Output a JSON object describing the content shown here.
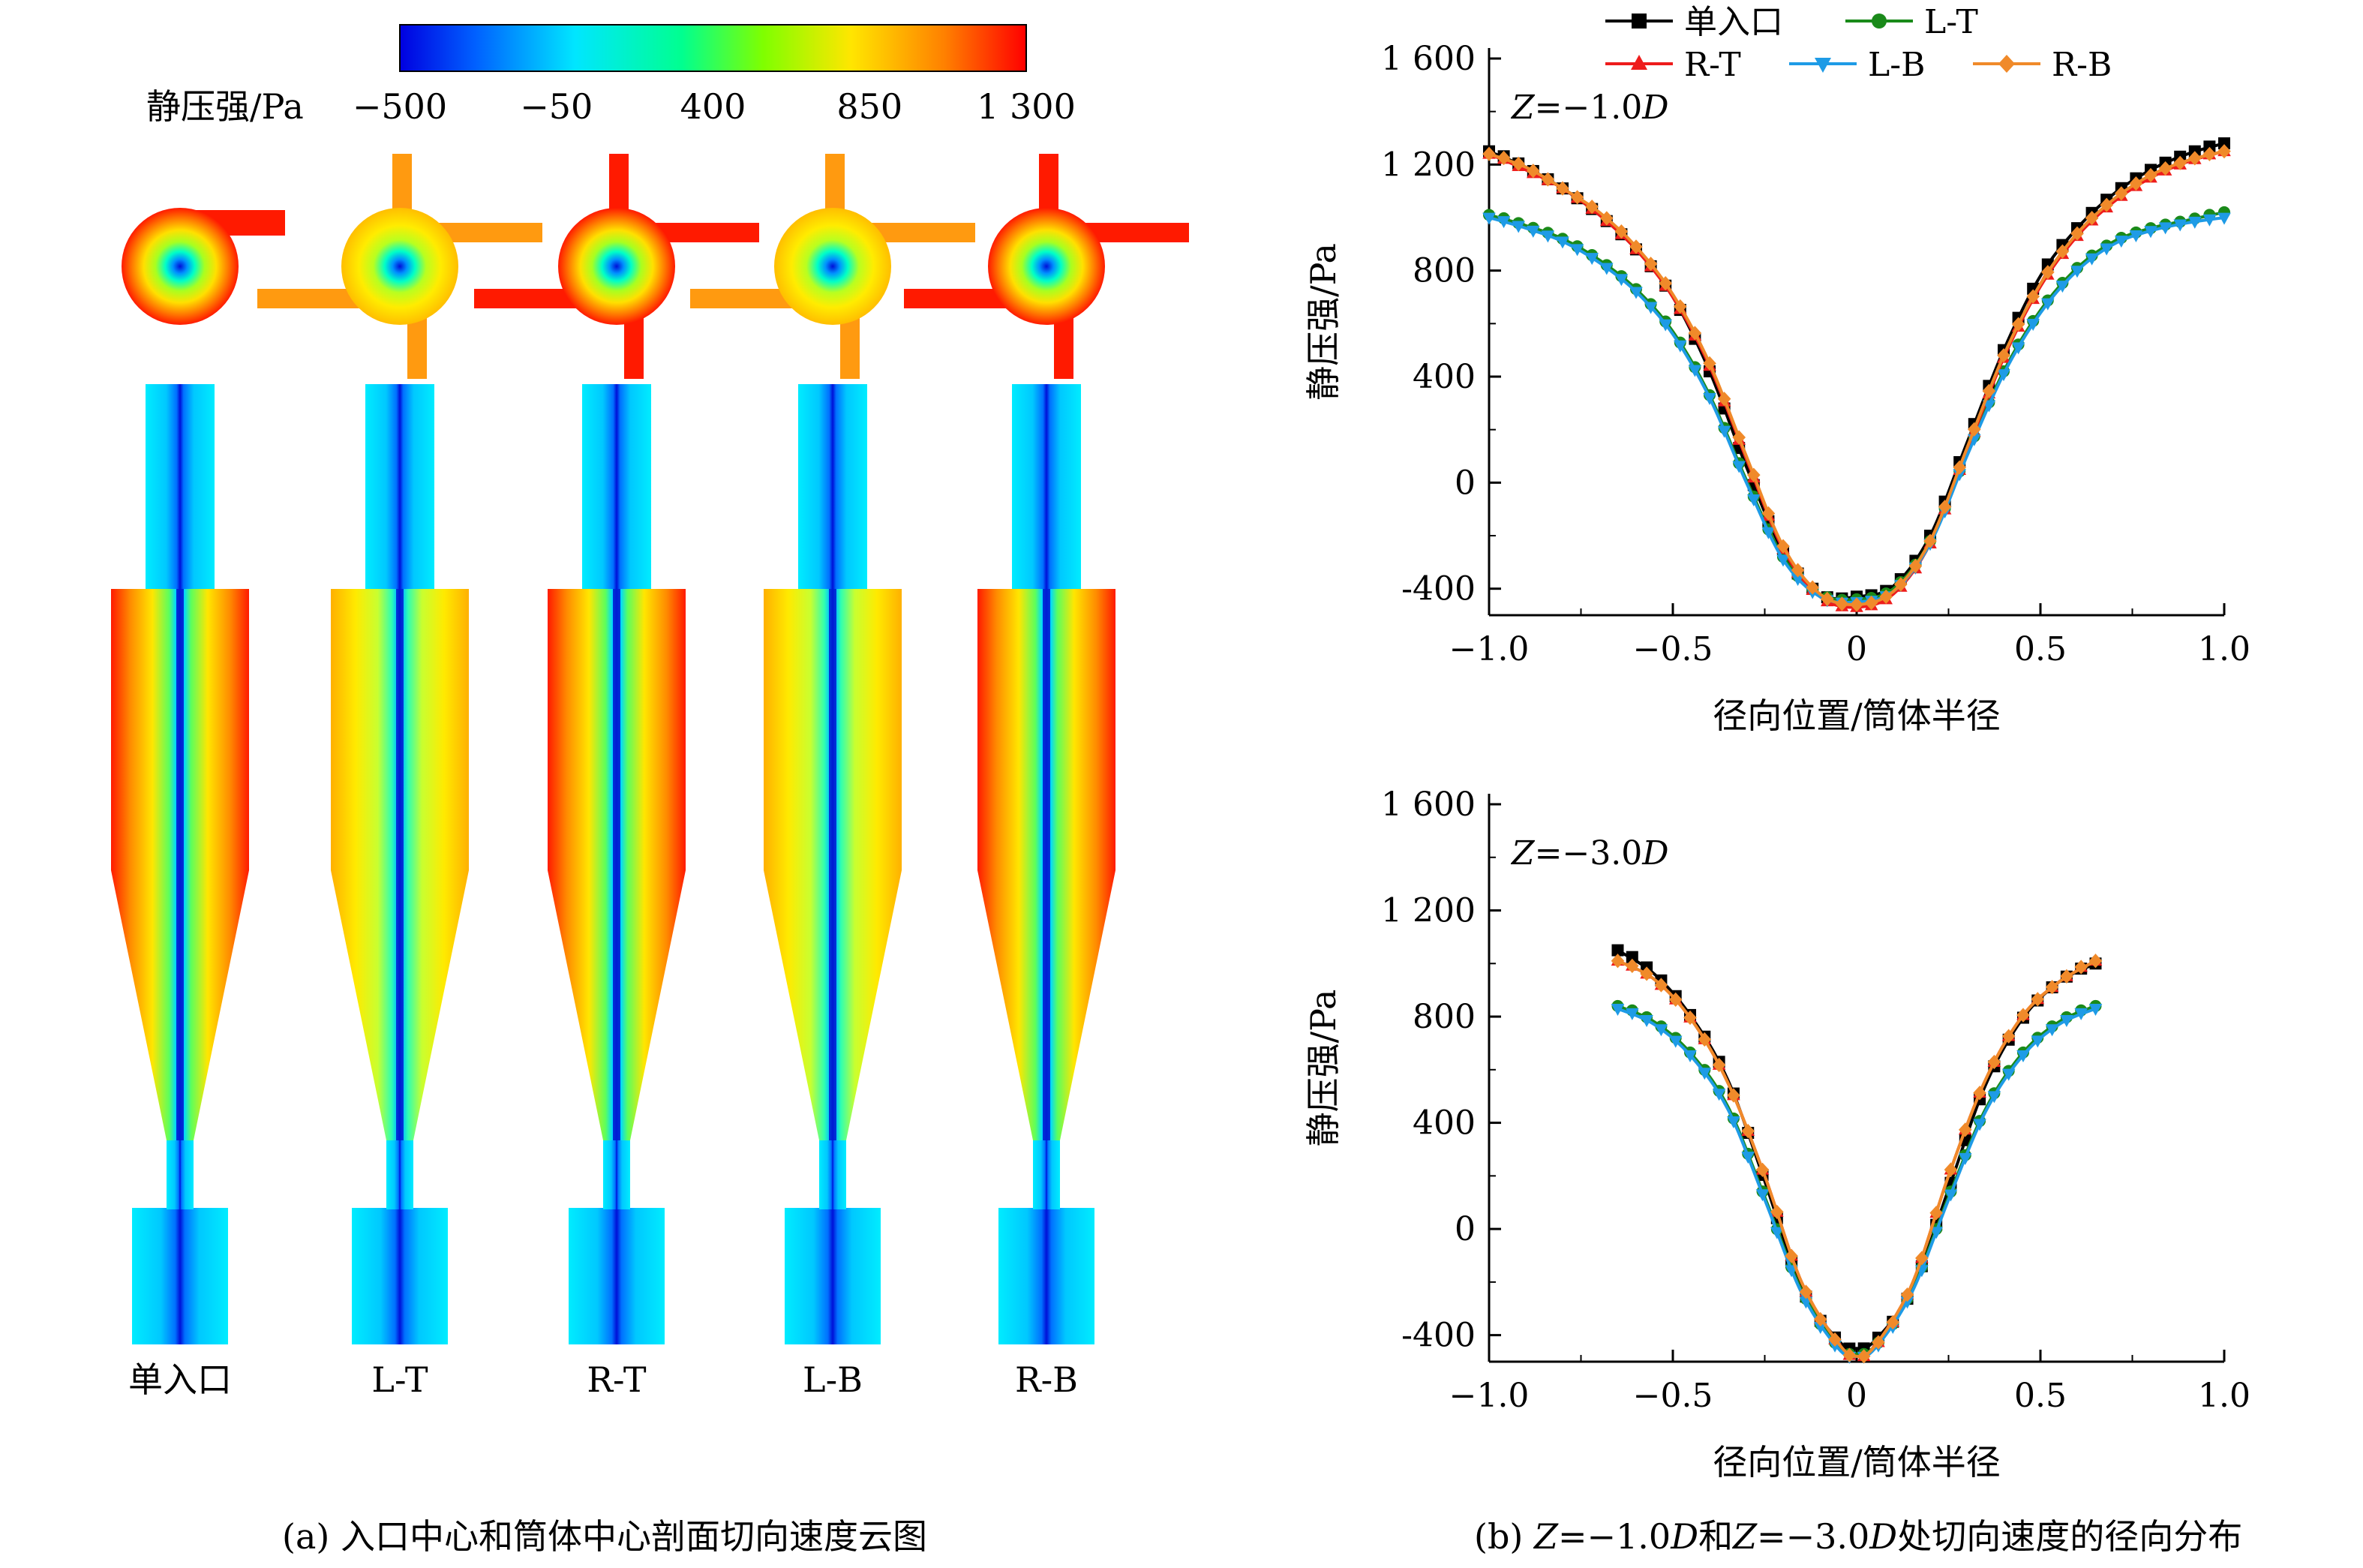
{
  "colorbar": {
    "label": "静压强/Pa",
    "ticks": [
      "−500",
      "−50",
      "400",
      "850",
      "1 300"
    ],
    "min": -500,
    "max": 1300,
    "colors": [
      "#0000e0",
      "#0060ff",
      "#00e6ff",
      "#00ff90",
      "#7fff00",
      "#ffe600",
      "#ff8000",
      "#ff0000"
    ]
  },
  "panel_a": {
    "configs": [
      "单入口",
      "L-T",
      "R-T",
      "L-B",
      "R-B"
    ],
    "caption": "(a) 入口中心和筒体中心剖面切向速度云图"
  },
  "panel_b": {
    "caption_prefix": "(b) ",
    "caption_z1": "Z",
    "caption_mid1": "=−1.0",
    "caption_d1": "D",
    "caption_and": "和",
    "caption_z2": "Z",
    "caption_mid2": "=−3.0",
    "caption_d2": "D",
    "caption_suffix": "处切向速度的径向分布"
  },
  "chart_data": [
    {
      "type": "line",
      "annotation": "Z=−1.0D",
      "xlabel": "径向位置/筒体半径",
      "ylabel": "静压强/Pa",
      "xlim": [
        -1.0,
        1.0
      ],
      "ylim": [
        -500,
        1600
      ],
      "xticks": [
        "−1.0",
        "−0.5",
        "0",
        "0.5",
        "1.0"
      ],
      "yticks": [
        "-400",
        "0",
        "400",
        "800",
        "1 200",
        "1 600"
      ],
      "x": [
        -1.0,
        -0.9,
        -0.8,
        -0.7,
        -0.6,
        -0.5,
        -0.4,
        -0.3,
        -0.2,
        -0.1,
        0.0,
        0.1,
        0.2,
        0.3,
        0.4,
        0.5,
        0.6,
        0.7,
        0.8,
        0.9,
        1.0
      ],
      "series": [
        {
          "name": "单入口",
          "color": "#000000",
          "marker": "square",
          "values": [
            1250,
            1190,
            1110,
            1010,
            880,
            700,
            420,
            60,
            -260,
            -420,
            -430,
            -390,
            -200,
            150,
            500,
            780,
            960,
            1090,
            1180,
            1240,
            1280
          ]
        },
        {
          "name": "L-T",
          "color": "#1a8a1a",
          "marker": "circle",
          "values": [
            1010,
            970,
            920,
            840,
            730,
            570,
            330,
            10,
            -280,
            -420,
            -440,
            -400,
            -220,
            110,
            420,
            650,
            810,
            910,
            960,
            990,
            1020
          ]
        },
        {
          "name": "R-T",
          "color": "#ee1c1c",
          "marker": "triangle-up",
          "values": [
            1240,
            1180,
            1110,
            1010,
            880,
            700,
            440,
            90,
            -250,
            -430,
            -470,
            -420,
            -230,
            120,
            470,
            740,
            930,
            1060,
            1150,
            1210,
            1250
          ]
        },
        {
          "name": "L-B",
          "color": "#1e9be6",
          "marker": "triangle-down",
          "values": [
            1000,
            960,
            910,
            830,
            720,
            560,
            320,
            0,
            -290,
            -430,
            -450,
            -410,
            -230,
            100,
            410,
            640,
            800,
            900,
            950,
            980,
            1000
          ]
        },
        {
          "name": "R-B",
          "color": "#f08a2a",
          "marker": "diamond",
          "values": [
            1240,
            1190,
            1110,
            1020,
            890,
            710,
            450,
            100,
            -240,
            -420,
            -460,
            -410,
            -220,
            130,
            480,
            750,
            940,
            1070,
            1160,
            1215,
            1250
          ]
        }
      ]
    },
    {
      "type": "line",
      "annotation": "Z=−3.0D",
      "xlabel": "径向位置/筒体半径",
      "ylabel": "静压强/Pa",
      "xlim": [
        -1.0,
        1.0
      ],
      "ylim": [
        -500,
        1600
      ],
      "xticks": [
        "−1.0",
        "−0.5",
        "0",
        "0.5",
        "1.0"
      ],
      "yticks": [
        "-400",
        "0",
        "400",
        "800",
        "1 200",
        "1 600"
      ],
      "x": [
        -0.65,
        -0.55,
        -0.45,
        -0.35,
        -0.25,
        -0.15,
        -0.05,
        0.0,
        0.05,
        0.15,
        0.25,
        0.35,
        0.45,
        0.55,
        0.65
      ],
      "series": [
        {
          "name": "单入口",
          "values": [
            1050,
            960,
            800,
            560,
            180,
            -220,
            -420,
            -450,
            -420,
            -230,
            150,
            540,
            790,
            930,
            1000
          ]
        },
        {
          "name": "L-T",
          "values": [
            840,
            780,
            660,
            460,
            120,
            -230,
            -440,
            -470,
            -440,
            -230,
            120,
            450,
            660,
            780,
            840
          ]
        },
        {
          "name": "R-T",
          "values": [
            1010,
            940,
            790,
            550,
            200,
            -200,
            -430,
            -480,
            -440,
            -210,
            200,
            560,
            800,
            930,
            1010
          ]
        },
        {
          "name": "L-B",
          "values": [
            830,
            770,
            650,
            450,
            110,
            -240,
            -450,
            -480,
            -450,
            -240,
            110,
            440,
            650,
            770,
            830
          ]
        },
        {
          "name": "R-B",
          "values": [
            1010,
            940,
            790,
            550,
            200,
            -200,
            -430,
            -480,
            -440,
            -210,
            200,
            560,
            800,
            930,
            1010
          ]
        }
      ]
    }
  ]
}
